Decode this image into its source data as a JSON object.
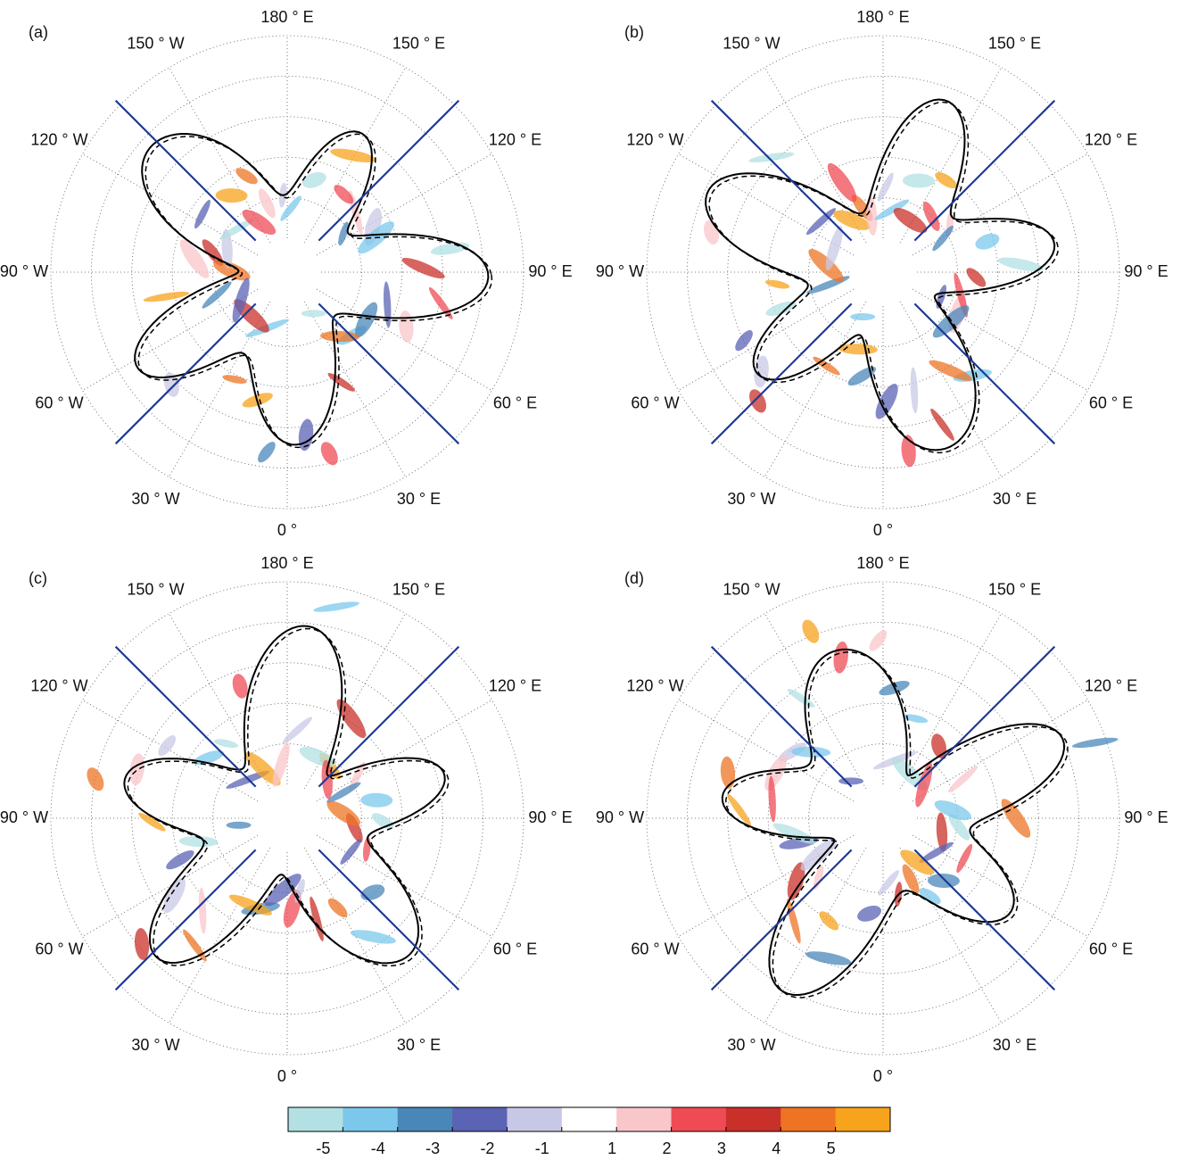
{
  "panels": [
    {
      "label": "(a)",
      "lon_labels": [
        "180 ° E",
        "150 ° E",
        "120 ° E",
        "90 ° E",
        "60 ° E",
        "30 ° E",
        "0 °",
        "30 ° W",
        "60 ° W",
        "90 ° W",
        "120 ° W",
        "150 ° W"
      ]
    },
    {
      "label": "(b)",
      "lon_labels": [
        "180 ° E",
        "150 ° E",
        "120 ° E",
        "90 ° E",
        "60 ° E",
        "30 ° E",
        "0 °",
        "30 ° W",
        "60 ° W",
        "90 ° W",
        "120 ° W",
        "150 ° W"
      ]
    },
    {
      "label": "(c)",
      "lon_labels": [
        "180 ° E",
        "150 ° E",
        "120 ° E",
        "90 ° E",
        "60 ° E",
        "30 ° E",
        "0 °",
        "30 ° W",
        "60 ° W",
        "90 ° W",
        "120 ° W",
        "150 ° W"
      ]
    },
    {
      "label": "(d)",
      "lon_labels": [
        "180 ° E",
        "150 ° E",
        "120 ° E",
        "90 ° E",
        "60 ° E",
        "30 ° E",
        "0 °",
        "30 ° W",
        "60 ° W",
        "90 ° W",
        "120 ° W",
        "150 ° W"
      ]
    }
  ],
  "colorbar": {
    "colors": [
      "#b2e0e3",
      "#7bc8ec",
      "#4a87b9",
      "#5b63b4",
      "#c8c8e6",
      "#ffffff",
      "#f9c6c9",
      "#ef4b55",
      "#c9302a",
      "#ee7424",
      "#f7a31c"
    ],
    "labels": [
      "-5",
      "-4",
      "-3",
      "-2",
      "-1",
      "1",
      "2",
      "3",
      "4",
      "5"
    ]
  }
}
